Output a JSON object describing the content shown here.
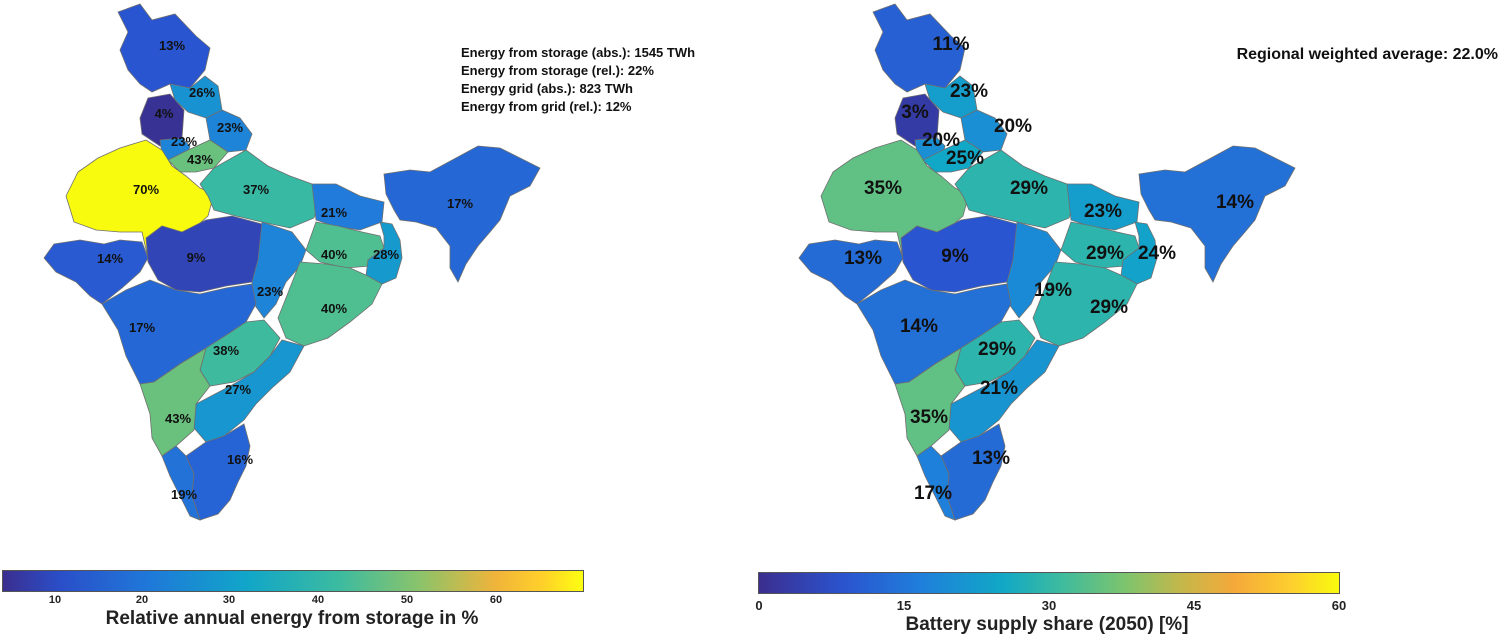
{
  "left_map": {
    "stats": [
      "Energy from storage (abs.): 1545 TWh",
      "Energy from storage (rel.): 22%",
      "Energy grid (abs.): 823 TWh",
      "Energy from grid (rel.): 12%"
    ],
    "regions": [
      {
        "id": "jk",
        "label": "13%",
        "value": 13
      },
      {
        "id": "hp",
        "label": "26%",
        "value": 26
      },
      {
        "id": "pb",
        "label": "4%",
        "value": 4
      },
      {
        "id": "uk",
        "label": "23%",
        "value": 23
      },
      {
        "id": "hr",
        "label": "23%",
        "value": 23
      },
      {
        "id": "dl",
        "label": "43%",
        "value": 43
      },
      {
        "id": "rj",
        "label": "70%",
        "value": 70
      },
      {
        "id": "up",
        "label": "37%",
        "value": 37
      },
      {
        "id": "br",
        "label": "21%",
        "value": 21
      },
      {
        "id": "ne",
        "label": "17%",
        "value": 17
      },
      {
        "id": "gj",
        "label": "14%",
        "value": 14
      },
      {
        "id": "mp",
        "label": "9%",
        "value": 9
      },
      {
        "id": "jh",
        "label": "40%",
        "value": 40
      },
      {
        "id": "wb",
        "label": "28%",
        "value": 28
      },
      {
        "id": "cg",
        "label": "23%",
        "value": 23
      },
      {
        "id": "od",
        "label": "40%",
        "value": 40
      },
      {
        "id": "mh",
        "label": "17%",
        "value": 17
      },
      {
        "id": "tg",
        "label": "38%",
        "value": 38
      },
      {
        "id": "ap",
        "label": "27%",
        "value": 27
      },
      {
        "id": "ka",
        "label": "43%",
        "value": 43
      },
      {
        "id": "tn",
        "label": "16%",
        "value": 16
      },
      {
        "id": "kl",
        "label": "19%",
        "value": 19
      }
    ],
    "colorbar": {
      "title": "Relative annual energy from storage in %",
      "ticks": [
        "10",
        "20",
        "30",
        "40",
        "50",
        "60"
      ],
      "range": [
        3,
        70
      ]
    }
  },
  "right_map": {
    "average": "Regional weighted average: 22.0%",
    "regions": [
      {
        "id": "jk",
        "label": "11%",
        "value": 11
      },
      {
        "id": "hp",
        "label": "23%",
        "value": 23
      },
      {
        "id": "pb",
        "label": "3%",
        "value": 3
      },
      {
        "id": "uk",
        "label": "20%",
        "value": 20
      },
      {
        "id": "hr",
        "label": "20%",
        "value": 20
      },
      {
        "id": "dl",
        "label": "25%",
        "value": 25
      },
      {
        "id": "rj",
        "label": "35%",
        "value": 35
      },
      {
        "id": "up",
        "label": "29%",
        "value": 29
      },
      {
        "id": "br",
        "label": "23%",
        "value": 23
      },
      {
        "id": "ne",
        "label": "14%",
        "value": 14
      },
      {
        "id": "gj",
        "label": "13%",
        "value": 13
      },
      {
        "id": "mp",
        "label": "9%",
        "value": 9
      },
      {
        "id": "jh",
        "label": "29%",
        "value": 29
      },
      {
        "id": "wb",
        "label": "24%",
        "value": 24
      },
      {
        "id": "cg",
        "label": "19%",
        "value": 19
      },
      {
        "id": "od",
        "label": "29%",
        "value": 29
      },
      {
        "id": "mh",
        "label": "14%",
        "value": 14
      },
      {
        "id": "tg",
        "label": "29%",
        "value": 29
      },
      {
        "id": "ap",
        "label": "21%",
        "value": 21
      },
      {
        "id": "ka",
        "label": "35%",
        "value": 35
      },
      {
        "id": "tn",
        "label": "13%",
        "value": 13
      },
      {
        "id": "kl",
        "label": "17%",
        "value": 17
      }
    ],
    "colorbar": {
      "title": "Battery supply share (2050) [%]",
      "ticks": [
        "0",
        "15",
        "30",
        "45",
        "60"
      ],
      "range": [
        0,
        60
      ]
    }
  }
}
